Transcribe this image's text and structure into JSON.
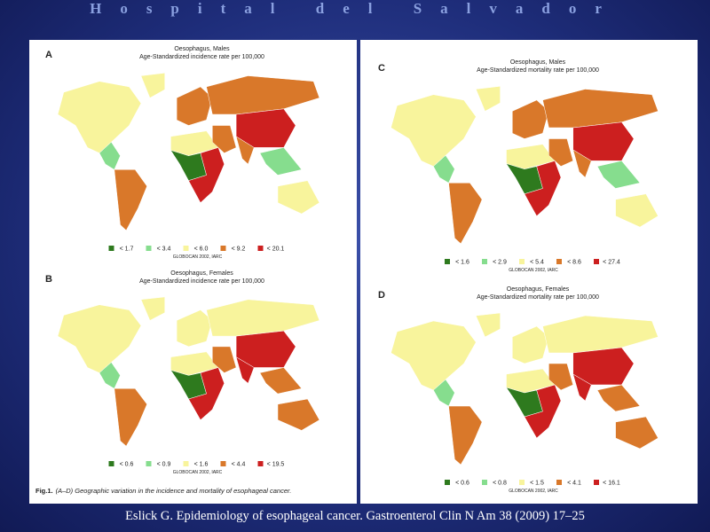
{
  "header": {
    "title": "Hospital del Salvador"
  },
  "panels": [
    {
      "letter": "A",
      "title": "Oesophagus, Males",
      "subtitle": "Age-Standardized incidence rate per 100,000",
      "legend": [
        {
          "label": "< 1.7",
          "color": "#2e7a1e"
        },
        {
          "label": "< 3.4",
          "color": "#86dd8e"
        },
        {
          "label": "< 6.0",
          "color": "#f8f49c"
        },
        {
          "label": "< 9.2",
          "color": "#d9782a"
        },
        {
          "label": "< 20.1",
          "color": "#cc1f1f"
        }
      ],
      "source": "GLOBOCAN 2002, IARC"
    },
    {
      "letter": "B",
      "title": "Oesophagus, Females",
      "subtitle": "Age-Standardized incidence rate per 100,000",
      "legend": [
        {
          "label": "< 0.6",
          "color": "#2e7a1e"
        },
        {
          "label": "< 0.9",
          "color": "#86dd8e"
        },
        {
          "label": "< 1.6",
          "color": "#f8f49c"
        },
        {
          "label": "< 4.4",
          "color": "#d9782a"
        },
        {
          "label": "< 19.5",
          "color": "#cc1f1f"
        }
      ],
      "source": "GLOBOCAN 2002, IARC"
    },
    {
      "letter": "C",
      "title": "Oesophagus, Males",
      "subtitle": "Age-Standardized mortality rate per 100,000",
      "legend": [
        {
          "label": "< 1.6",
          "color": "#2e7a1e"
        },
        {
          "label": "< 2.9",
          "color": "#86dd8e"
        },
        {
          "label": "< 5.4",
          "color": "#f8f49c"
        },
        {
          "label": "< 8.6",
          "color": "#d9782a"
        },
        {
          "label": "< 27.4",
          "color": "#cc1f1f"
        }
      ],
      "source": "GLOBOCAN 2002, IARC"
    },
    {
      "letter": "D",
      "title": "Oesophagus, Females",
      "subtitle": "Age-Standardized mortality rate per 100,000",
      "legend": [
        {
          "label": "< 0.6",
          "color": "#2e7a1e"
        },
        {
          "label": "< 0.8",
          "color": "#86dd8e"
        },
        {
          "label": "< 1.5",
          "color": "#f8f49c"
        },
        {
          "label": "< 4.1",
          "color": "#d9782a"
        },
        {
          "label": "< 16.1",
          "color": "#cc1f1f"
        }
      ],
      "source": "GLOBOCAN 2002, IARC"
    }
  ],
  "caption": {
    "label": "Fig.1.",
    "text": "(A–D) Geographic variation in the incidence and mortality of esophageal cancer."
  },
  "citation": "Eslick G. Epidemiology of esophageal cancer. Gastroenterol Clin N Am 38 (2009) 17–25"
}
